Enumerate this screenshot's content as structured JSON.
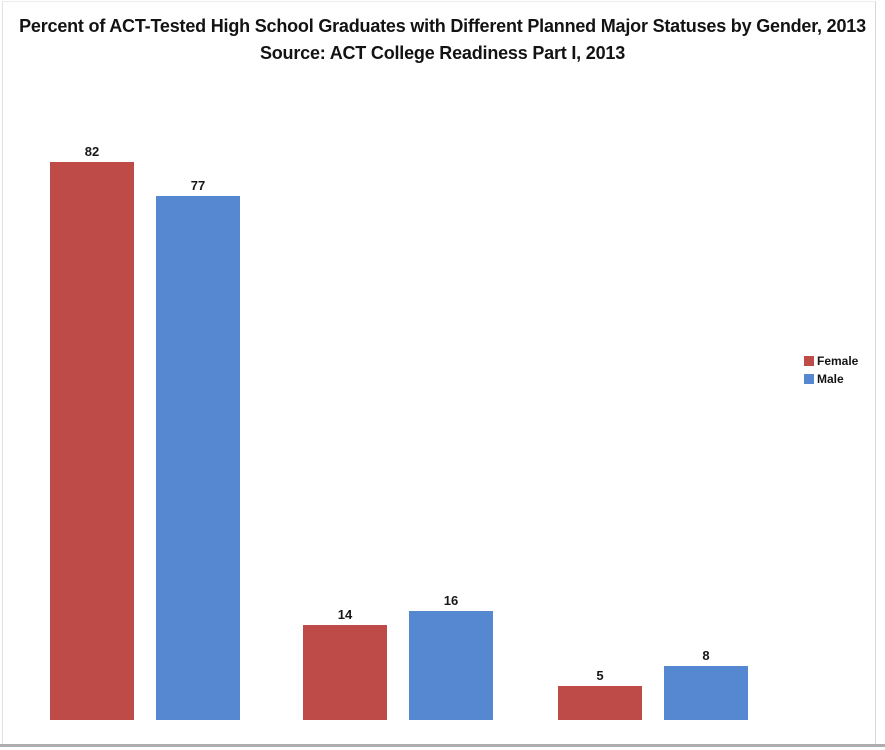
{
  "title": {
    "line1": "Percent of ACT-Tested High School Graduates with Different Planned Major Statuses by Gender, 2013",
    "line2": "Source: ACT College Readiness Part I, 2013"
  },
  "chart_data": {
    "type": "bar",
    "title": "Percent of ACT-Tested High School Graduates with Different Planned Major Statuses by Gender, 2013",
    "subtitle": "Source: ACT College Readiness Part I, 2013",
    "categories": [
      "",
      "",
      ""
    ],
    "series": [
      {
        "name": "Female",
        "color": "#be4b48",
        "values": [
          82,
          14,
          5
        ]
      },
      {
        "name": "Male",
        "color": "#5588d0",
        "values": [
          77,
          16,
          8
        ]
      }
    ],
    "data_labels": true,
    "axes_visible": false,
    "gridlines": false,
    "legend_position": "right",
    "ylim": [
      0,
      90
    ]
  },
  "colors": {
    "female": "#be4b48",
    "male": "#5588d0",
    "title_text": "#131313",
    "label_text": "#181818",
    "bottom_border": "#adadad",
    "frame_border": "#e2e2e2",
    "background": "#ffffff"
  }
}
